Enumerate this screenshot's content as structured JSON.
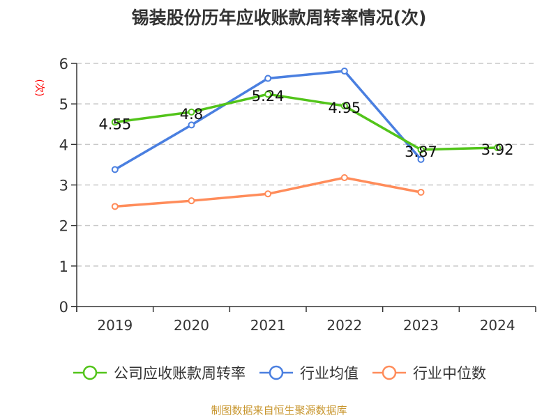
{
  "chart_data": {
    "type": "line",
    "title": "锡装股份历年应收账款周转率情况(次)",
    "ylabel": "(次)",
    "xlabel": "",
    "categories": [
      "2019",
      "2020",
      "2021",
      "2022",
      "2023",
      "2024"
    ],
    "ylim": [
      0,
      6
    ],
    "yticks": [
      "0",
      "1",
      "2",
      "3",
      "4",
      "5",
      "6"
    ],
    "grid": true,
    "legend_position": "bottom",
    "series": [
      {
        "name": "公司应收账款周转率",
        "color": "#52c41a",
        "values": [
          4.55,
          4.8,
          5.24,
          4.95,
          3.87,
          3.92
        ],
        "labels": [
          "4.55",
          "4.8",
          "5.24",
          "4.95",
          "3.87",
          "3.92"
        ]
      },
      {
        "name": "行业均值",
        "color": "#4a7fe0",
        "values": [
          3.38,
          4.48,
          5.63,
          5.81,
          3.63,
          null
        ]
      },
      {
        "name": "行业中位数",
        "color": "#ff8c5a",
        "values": [
          2.47,
          2.61,
          2.78,
          3.18,
          2.82,
          null
        ]
      }
    ]
  },
  "source": "制图数据来自恒生聚源数据库"
}
